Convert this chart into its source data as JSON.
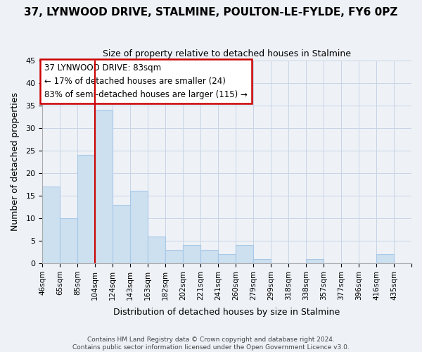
{
  "title": "37, LYNWOOD DRIVE, STALMINE, POULTON-LE-FYLDE, FY6 0PZ",
  "subtitle": "Size of property relative to detached houses in Stalmine",
  "xlabel": "Distribution of detached houses by size in Stalmine",
  "ylabel": "Number of detached properties",
  "bar_color": "#cce0f0",
  "bar_edge_color": "#a8c8e8",
  "bin_labels": [
    "46sqm",
    "65sqm",
    "85sqm",
    "104sqm",
    "124sqm",
    "143sqm",
    "163sqm",
    "182sqm",
    "202sqm",
    "221sqm",
    "241sqm",
    "260sqm",
    "279sqm",
    "299sqm",
    "318sqm",
    "338sqm",
    "357sqm",
    "377sqm",
    "396sqm",
    "416sqm",
    "435sqm"
  ],
  "values": [
    17,
    10,
    24,
    34,
    13,
    16,
    6,
    3,
    4,
    3,
    2,
    4,
    1,
    0,
    0,
    1,
    0,
    0,
    0,
    2,
    0
  ],
  "ylim": [
    0,
    45
  ],
  "yticks": [
    0,
    5,
    10,
    15,
    20,
    25,
    30,
    35,
    40,
    45
  ],
  "vline_color": "#cc0000",
  "annotation_title": "37 LYNWOOD DRIVE: 83sqm",
  "annotation_line1": "← 17% of detached houses are smaller (24)",
  "annotation_line2": "83% of semi-detached houses are larger (115) →",
  "annotation_box_color": "#ffffff",
  "annotation_box_edge": "#cc0000",
  "footer1": "Contains HM Land Registry data © Crown copyright and database right 2024.",
  "footer2": "Contains public sector information licensed under the Open Government Licence v3.0.",
  "background_color": "#eef2f7",
  "plot_background": "#eef2f7",
  "grid_color": "#c8d4e4"
}
